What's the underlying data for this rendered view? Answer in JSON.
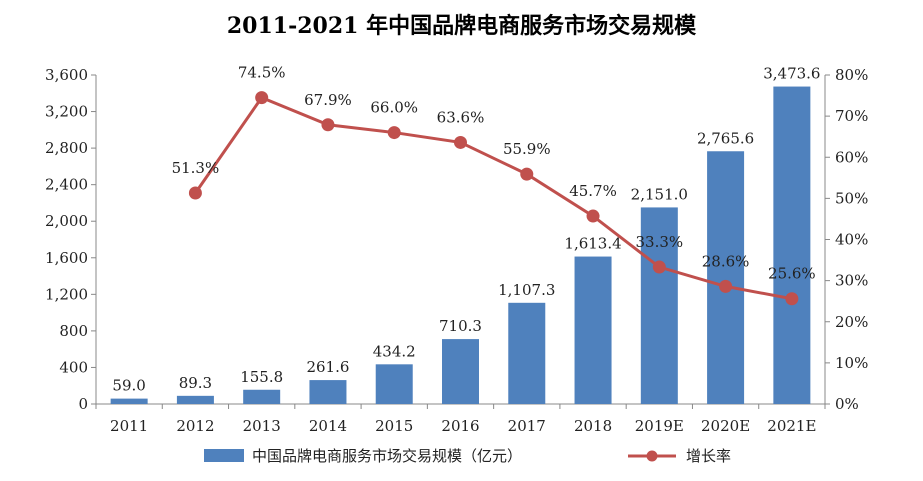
{
  "chart_data": {
    "type": "bar",
    "title": "2011-2021 年中国品牌电商服务市场交易规模",
    "categories": [
      "2011",
      "2012",
      "2013",
      "2014",
      "2015",
      "2016",
      "2017",
      "2018",
      "2019E",
      "2020E",
      "2021E"
    ],
    "series": [
      {
        "name": "中国品牌电商服务市场交易规模（亿元）",
        "type": "bar",
        "axis": "left",
        "color": "#4f81bd",
        "values": [
          59.0,
          89.3,
          155.8,
          261.6,
          434.2,
          710.3,
          1107.3,
          1613.4,
          2151.0,
          2765.6,
          3473.6
        ],
        "labels": [
          "59.0",
          "89.3",
          "155.8",
          "261.6",
          "434.2",
          "710.3",
          "1,107.3",
          "1,613.4",
          "2,151.0",
          "2,765.6",
          "3,473.6"
        ]
      },
      {
        "name": "增长率",
        "type": "line",
        "axis": "right",
        "color": "#c0504d",
        "values": [
          null,
          51.3,
          74.5,
          67.9,
          66.0,
          63.6,
          55.9,
          45.7,
          33.3,
          28.6,
          25.6
        ],
        "labels": [
          "",
          "51.3%",
          "74.5%",
          "67.9%",
          "66.0%",
          "63.6%",
          "55.9%",
          "45.7%",
          "33.3%",
          "28.6%",
          "25.6%"
        ]
      }
    ],
    "ylim_left": [
      0,
      3600
    ],
    "ylim_right": [
      0,
      80
    ],
    "yticks_left": [
      "0",
      "400",
      "800",
      "1,200",
      "1,600",
      "2,000",
      "2,400",
      "2,800",
      "3,200",
      "3,600"
    ],
    "yticks_right": [
      "0%",
      "10%",
      "20%",
      "30%",
      "40%",
      "50%",
      "60%",
      "70%",
      "80%"
    ],
    "legend_position": "bottom",
    "grid": false
  }
}
